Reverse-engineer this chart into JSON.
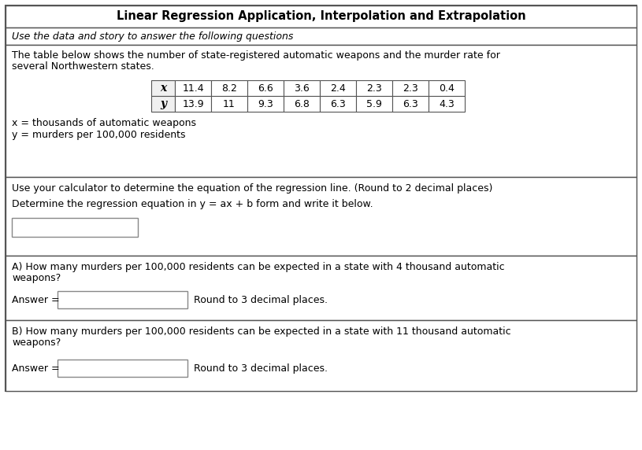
{
  "title": "Linear Regression Application, Interpolation and Extrapolation",
  "subtitle": "Use the data and story to answer the following questions",
  "story_line1": "The table below shows the number of state-registered automatic weapons and the murder rate for",
  "story_line2": "several Northwestern states.",
  "x_values": [
    "11.4",
    "8.2",
    "6.6",
    "3.6",
    "2.4",
    "2.3",
    "2.3",
    "0.4"
  ],
  "y_values": [
    "13.9",
    "11",
    "9.3",
    "6.8",
    "6.3",
    "5.9",
    "6.3",
    "4.3"
  ],
  "note1": "x = thousands of automatic weapons",
  "note2": "y = murders per 100,000 residents",
  "sec2_line1": "Use your calculator to determine the equation of the regression line. (Round to 2 decimal places)",
  "sec2_line2": "Determine the regression equation in y = ax + b form and write it below.",
  "answer_label": "Answer =",
  "sec3_text1": "A) How many murders per 100,000 residents can be expected in a state with 4 thousand automatic",
  "sec3_text2": "weapons?",
  "sec3_round": "Round to 3 decimal places.",
  "sec4_text1": "B) How many murders per 100,000 residents can be expected in a state with 11 thousand automatic",
  "sec4_text2": "weapons?",
  "sec4_round": "Round to 3 decimal places.",
  "bg_color": "#ffffff",
  "border_color": "#555555",
  "table_header_bg": "#f0f0f0",
  "font_size_title": 10.5,
  "font_size_body": 9.0,
  "font_size_table": 9.0,
  "font_size_italic": 9.0
}
